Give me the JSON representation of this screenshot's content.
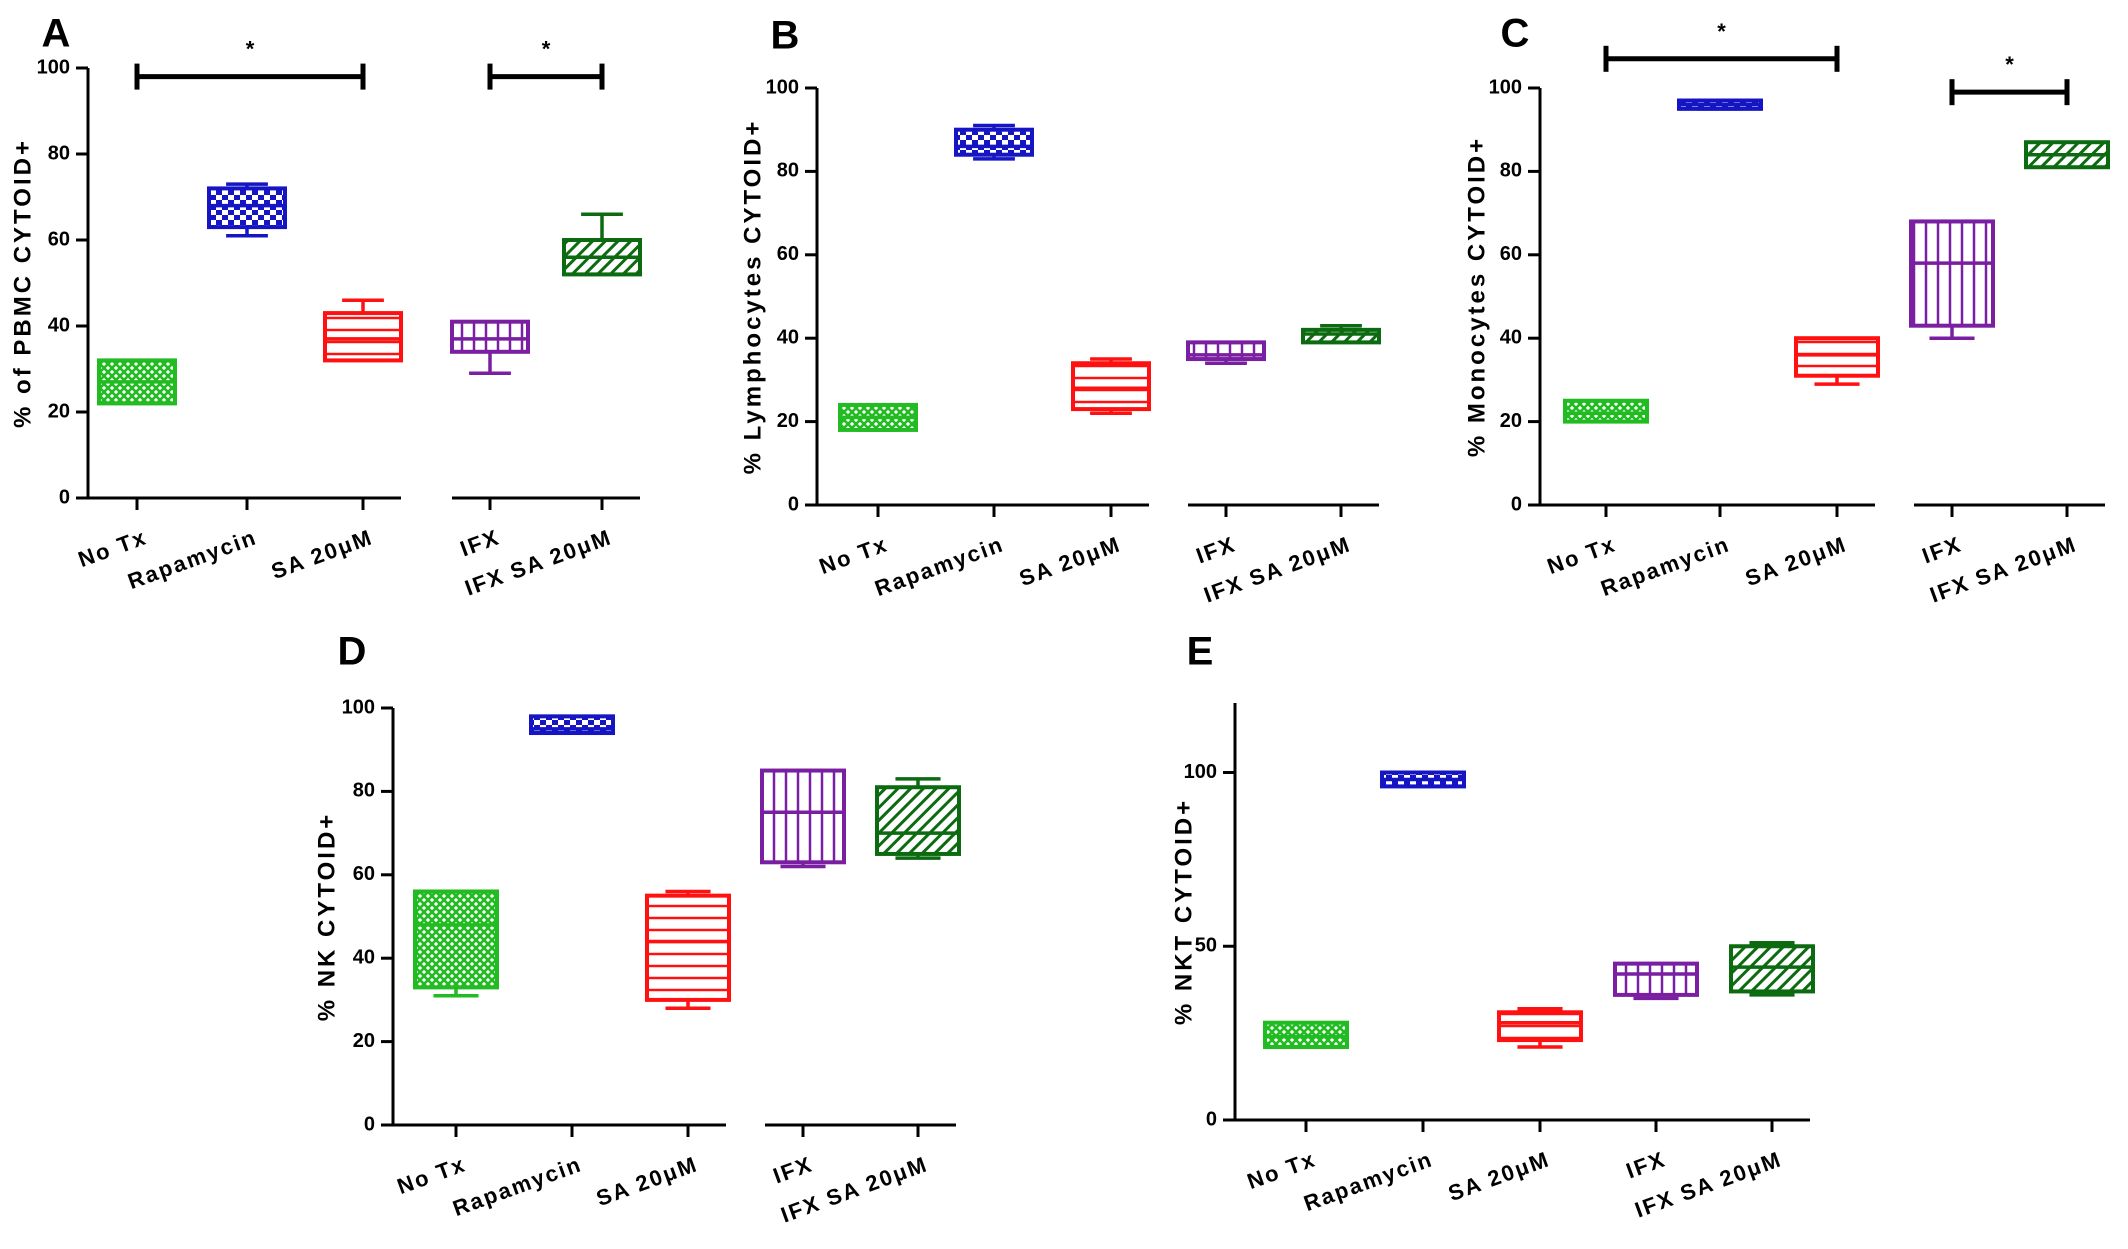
{
  "figure": {
    "colors": {
      "No Tx": "#22bb22",
      "Rapamycin": "#1515c4",
      "SA 20μM": "#ff1111",
      "IFX": "#7a1fa2",
      "IFX SA 20μM": "#0c6b10"
    },
    "patterns": {
      "No Tx": "crosshatch",
      "Rapamycin": "checker",
      "SA 20μM": "horizontal",
      "IFX": "vertical",
      "IFX SA 20μM": "diagonal"
    }
  },
  "chart_data": [
    {
      "type": "box",
      "panel": "A",
      "ylabel": "% of PBMC CYTOID+",
      "ylim": [
        0,
        100
      ],
      "yticks": [
        "0",
        "20",
        "40",
        "60",
        "80",
        "100"
      ],
      "categories": [
        "No Tx",
        "Rapamycin",
        "SA 20μM",
        "IFX",
        "IFX SA 20μM"
      ],
      "groups": [
        0,
        0,
        0,
        1,
        1
      ],
      "boxes": [
        {
          "min": 22,
          "q1": 22,
          "median": 27,
          "q3": 32,
          "max": 32
        },
        {
          "min": 61,
          "q1": 63,
          "median": 68,
          "q3": 72,
          "max": 73
        },
        {
          "min": 32,
          "q1": 32,
          "median": 37,
          "q3": 43,
          "max": 46
        },
        {
          "min": 29,
          "q1": 34,
          "median": 37,
          "q3": 41,
          "max": 41
        },
        {
          "min": 52,
          "q1": 52,
          "median": 56,
          "q3": 60,
          "max": 66
        }
      ],
      "significance": [
        {
          "from": 0,
          "to": 2,
          "label": "*",
          "y": 98
        },
        {
          "from": 3,
          "to": 4,
          "label": "*",
          "y": 98
        }
      ]
    },
    {
      "type": "box",
      "panel": "B",
      "ylabel": "% Lymphocytes CYTOID+",
      "ylim": [
        0,
        100
      ],
      "yticks": [
        "0",
        "20",
        "40",
        "60",
        "80",
        "100"
      ],
      "categories": [
        "No Tx",
        "Rapamycin",
        "SA 20μM",
        "IFX",
        "IFX SA 20μM"
      ],
      "groups": [
        0,
        0,
        0,
        1,
        1
      ],
      "boxes": [
        {
          "min": 18,
          "q1": 18,
          "median": 21,
          "q3": 24,
          "max": 24
        },
        {
          "min": 83,
          "q1": 84,
          "median": 86,
          "q3": 90,
          "max": 91
        },
        {
          "min": 22,
          "q1": 23,
          "median": 28,
          "q3": 34,
          "max": 35
        },
        {
          "min": 34,
          "q1": 35,
          "median": 36,
          "q3": 39,
          "max": 39
        },
        {
          "min": 39,
          "q1": 39,
          "median": 41,
          "q3": 42,
          "max": 43
        }
      ],
      "significance": []
    },
    {
      "type": "box",
      "panel": "C",
      "ylabel": "% Monocytes CYTOID+",
      "ylim": [
        0,
        100
      ],
      "yticks": [
        "0",
        "20",
        "40",
        "60",
        "80",
        "100"
      ],
      "categories": [
        "No Tx",
        "Rapamycin",
        "SA 20μM",
        "IFX",
        "IFX SA 20μM"
      ],
      "groups": [
        0,
        0,
        0,
        1,
        1
      ],
      "boxes": [
        {
          "min": 20,
          "q1": 20,
          "median": 22,
          "q3": 25,
          "max": 25
        },
        {
          "min": 95,
          "q1": 95,
          "median": 96,
          "q3": 97,
          "max": 97
        },
        {
          "min": 29,
          "q1": 31,
          "median": 36,
          "q3": 40,
          "max": 40
        },
        {
          "min": 40,
          "q1": 43,
          "median": 58,
          "q3": 68,
          "max": 68
        },
        {
          "min": 81,
          "q1": 81,
          "median": 84,
          "q3": 87,
          "max": 87
        }
      ],
      "significance": [
        {
          "from": 0,
          "to": 2,
          "label": "*",
          "y": 107
        },
        {
          "from": 3,
          "to": 4,
          "label": "*",
          "y": 99
        }
      ]
    },
    {
      "type": "box",
      "panel": "D",
      "ylabel": "% NK CYTOID+",
      "ylim": [
        0,
        100
      ],
      "yticks": [
        "0",
        "20",
        "40",
        "60",
        "80",
        "100"
      ],
      "categories": [
        "No Tx",
        "Rapamycin",
        "SA 20μM",
        "IFX",
        "IFX SA 20μM"
      ],
      "groups": [
        0,
        0,
        0,
        1,
        1
      ],
      "boxes": [
        {
          "min": 31,
          "q1": 33,
          "median": 48,
          "q3": 56,
          "max": 56
        },
        {
          "min": 94,
          "q1": 94,
          "median": 95,
          "q3": 98,
          "max": 98
        },
        {
          "min": 28,
          "q1": 30,
          "median": 44,
          "q3": 55,
          "max": 56
        },
        {
          "min": 62,
          "q1": 63,
          "median": 75,
          "q3": 85,
          "max": 85
        },
        {
          "min": 64,
          "q1": 65,
          "median": 70,
          "q3": 81,
          "max": 83
        }
      ],
      "significance": []
    },
    {
      "type": "box",
      "panel": "E",
      "ylabel": "% NKT CYTOID+",
      "ylim": [
        0,
        120
      ],
      "yticks": [
        "0",
        "50",
        "100"
      ],
      "categories": [
        "No Tx",
        "Rapamycin",
        "SA 20μM",
        "IFX",
        "IFX SA 20μM"
      ],
      "groups": [
        0,
        0,
        0,
        0,
        0
      ],
      "boxes": [
        {
          "min": 21,
          "q1": 21,
          "median": 24,
          "q3": 28,
          "max": 28
        },
        {
          "min": 96,
          "q1": 96,
          "median": 98,
          "q3": 100,
          "max": 100
        },
        {
          "min": 21,
          "q1": 23,
          "median": 28,
          "q3": 31,
          "max": 32
        },
        {
          "min": 35,
          "q1": 36,
          "median": 42,
          "q3": 45,
          "max": 45
        },
        {
          "min": 36,
          "q1": 37,
          "median": 44,
          "q3": 50,
          "max": 51
        }
      ],
      "significance": []
    }
  ]
}
